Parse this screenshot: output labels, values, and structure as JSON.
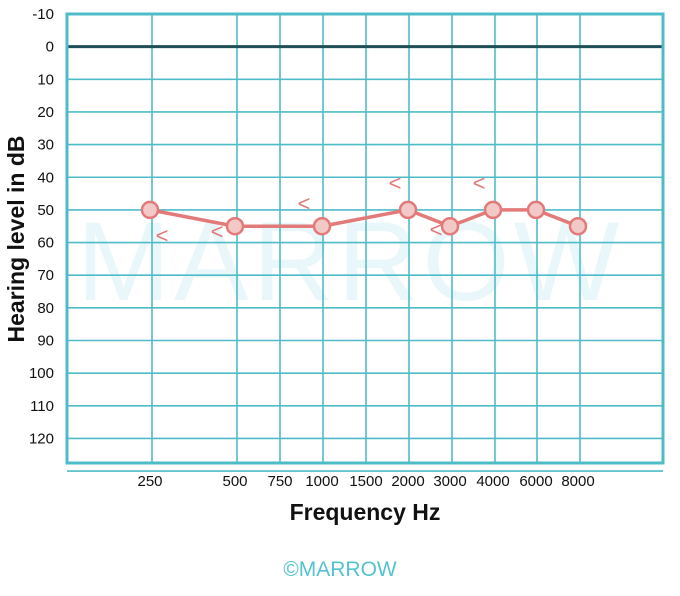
{
  "chart_data": {
    "type": "line",
    "xlabel": "Frequency Hz",
    "ylabel": "Hearing level in dB",
    "x_ticks": [
      "250",
      "500",
      "750",
      "1000",
      "1500",
      "2000",
      "3000",
      "4000",
      "6000",
      "8000"
    ],
    "y_ticks": [
      -10,
      0,
      10,
      20,
      30,
      40,
      50,
      60,
      70,
      80,
      90,
      100,
      110,
      120
    ],
    "ylim": [
      -10,
      130
    ],
    "y_inverted": true,
    "reference_line": 0,
    "grid": true,
    "series": [
      {
        "color": "#e27a7a",
        "marker": "circle",
        "points": [
          {
            "x": "250",
            "y": 50
          },
          {
            "x": "500",
            "y": 55
          },
          {
            "x": "1000",
            "y": 55
          },
          {
            "x": "2000",
            "y": 50
          },
          {
            "x": "3000",
            "y": 55
          },
          {
            "x": "4000",
            "y": 50
          },
          {
            "x": "6000",
            "y": 50
          },
          {
            "x": "8000",
            "y": 55
          }
        ]
      }
    ],
    "masking_symbols": [
      {
        "symbol": "<",
        "x": "250",
        "y": 55
      },
      {
        "symbol": "<",
        "x": "500",
        "y": 55
      },
      {
        "symbol": "<",
        "x": "1000",
        "y": 50
      },
      {
        "symbol": "<",
        "x": "2000",
        "y": 45
      },
      {
        "symbol": "<",
        "x": "3000",
        "y": 55
      },
      {
        "symbol": "<",
        "x": "4000",
        "y": 45
      }
    ],
    "watermark": "MARROW"
  },
  "footer": {
    "brand": "©MARROW"
  },
  "colors": {
    "grid": "#4ebcc8",
    "zero_line": "#1f4f58",
    "series": "#e27a7a",
    "marker_fill": "#f2c9c7",
    "brand": "#54c3cf"
  }
}
